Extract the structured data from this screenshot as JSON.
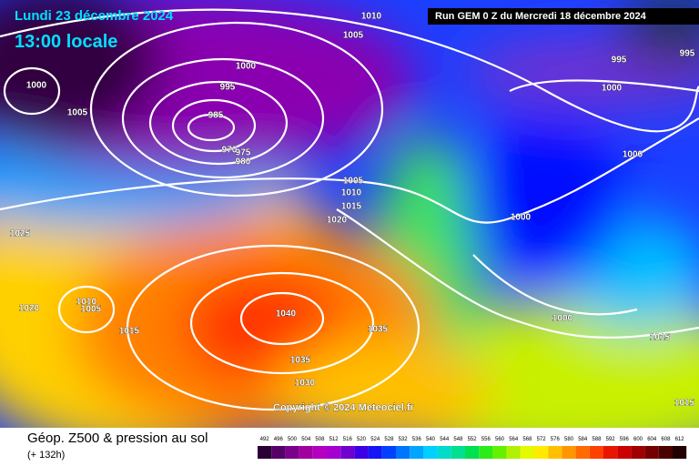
{
  "header": {
    "date": "Lundi 23 décembre 2024",
    "time": "13:00 locale",
    "run": "Run GEM 0 Z du Mercredi 18 décembre 2024"
  },
  "footer": {
    "title": "Géop. Z500 & pression au sol",
    "lead": "(+ 132h)",
    "copyright": "Copyright © 2024 Meteociel.fr"
  },
  "colorbar_levels": [
    492,
    496,
    500,
    504,
    508,
    512,
    516,
    520,
    524,
    528,
    532,
    536,
    540,
    544,
    548,
    552,
    556,
    560,
    564,
    568,
    572,
    576,
    580,
    584,
    588,
    592,
    596,
    600,
    604,
    608,
    612
  ],
  "isobar_labels": [
    1010,
    1005,
    1000,
    995,
    985,
    975,
    970,
    980,
    1000,
    1005,
    1025,
    1020,
    1010,
    1005,
    1015,
    1040,
    1035,
    1030,
    1035,
    1005,
    1010,
    1015,
    1020,
    1000,
    1000,
    995,
    995,
    1000,
    1000,
    1015,
    1015
  ]
}
